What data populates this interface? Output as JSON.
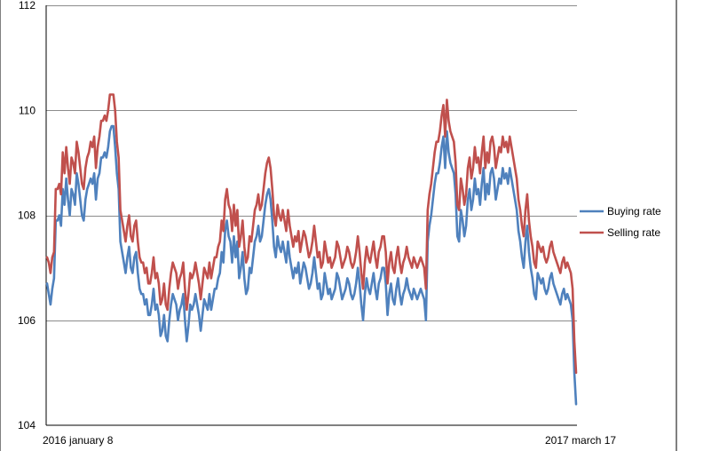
{
  "chart_data": {
    "type": "line",
    "title": "",
    "xlabel": "",
    "ylabel": "",
    "ylim": [
      104,
      112
    ],
    "y_ticks": [
      104,
      106,
      108,
      110,
      112
    ],
    "grid": true,
    "legend_position": "right",
    "x_tick_labels": [
      "2016 january 8",
      "2017 march 17"
    ],
    "series": [
      {
        "name": "Buying rate",
        "color": "#4F81BD",
        "values": [
          106.7,
          106.5,
          106.3,
          106.6,
          106.8,
          107.9,
          107.9,
          108.0,
          107.8,
          108.5,
          108.2,
          108.7,
          108.3,
          108.0,
          108.5,
          108.4,
          108.2,
          108.8,
          108.6,
          108.3,
          108.0,
          107.9,
          108.3,
          108.5,
          108.6,
          108.7,
          108.6,
          108.8,
          108.3,
          108.7,
          108.8,
          109.1,
          109.1,
          109.2,
          109.1,
          109.3,
          109.6,
          109.7,
          109.7,
          109.3,
          108.8,
          108.5,
          107.5,
          107.3,
          107.1,
          106.9,
          107.2,
          107.4,
          107.0,
          106.9,
          107.2,
          107.3,
          106.9,
          106.6,
          106.5,
          106.5,
          106.3,
          106.4,
          106.1,
          106.1,
          106.3,
          106.6,
          106.2,
          106.3,
          106.1,
          105.7,
          105.8,
          106.1,
          105.7,
          105.6,
          106.0,
          106.3,
          106.5,
          106.4,
          106.3,
          106.0,
          106.2,
          106.3,
          106.5,
          106.0,
          105.6,
          105.9,
          106.3,
          106.2,
          106.3,
          106.5,
          106.3,
          106.1,
          105.8,
          106.1,
          106.4,
          106.3,
          106.2,
          106.5,
          106.2,
          106.4,
          106.6,
          106.6,
          106.8,
          106.9,
          107.3,
          107.1,
          107.7,
          107.9,
          107.6,
          107.5,
          107.1,
          107.6,
          107.2,
          107.5,
          106.8,
          107.0,
          107.3,
          106.8,
          106.5,
          106.6,
          107.0,
          106.9,
          107.2,
          107.5,
          107.6,
          107.8,
          107.5,
          107.6,
          107.9,
          108.2,
          108.4,
          108.5,
          108.3,
          107.9,
          107.4,
          107.2,
          107.6,
          107.4,
          107.3,
          107.5,
          107.3,
          107.1,
          107.5,
          107.2,
          107.0,
          106.8,
          107.0,
          106.9,
          107.1,
          106.7,
          106.9,
          107.1,
          107.0,
          106.8,
          106.6,
          106.7,
          106.9,
          107.2,
          106.9,
          106.6,
          106.7,
          106.4,
          106.5,
          106.9,
          106.7,
          106.5,
          106.6,
          106.4,
          106.5,
          106.6,
          106.9,
          106.8,
          106.6,
          106.4,
          106.5,
          106.6,
          106.8,
          106.7,
          106.5,
          106.4,
          106.5,
          106.7,
          107.0,
          106.7,
          106.3,
          106.0,
          106.5,
          106.8,
          106.6,
          106.5,
          106.7,
          106.9,
          106.6,
          106.4,
          106.7,
          106.8,
          107.0,
          107.0,
          106.7,
          106.1,
          106.5,
          106.7,
          106.4,
          106.3,
          106.6,
          106.8,
          106.5,
          106.3,
          106.5,
          106.6,
          106.8,
          106.6,
          106.5,
          106.4,
          106.6,
          106.5,
          106.4,
          106.5,
          106.6,
          106.5,
          106.4,
          106.0,
          107.5,
          107.8,
          108.0,
          108.3,
          108.6,
          108.8,
          108.8,
          109.0,
          109.3,
          109.5,
          108.9,
          109.6,
          109.2,
          109.0,
          108.9,
          108.8,
          108.4,
          107.6,
          107.5,
          108.1,
          107.9,
          107.6,
          107.8,
          108.3,
          108.5,
          108.1,
          108.3,
          108.7,
          108.4,
          108.5,
          108.2,
          108.6,
          108.9,
          108.3,
          108.6,
          108.4,
          108.8,
          108.9,
          108.7,
          108.3,
          108.5,
          108.7,
          108.6,
          108.9,
          108.7,
          108.8,
          108.6,
          108.9,
          108.7,
          108.5,
          108.3,
          108.1,
          107.7,
          107.5,
          107.2,
          107.0,
          107.5,
          107.8,
          107.3,
          107.0,
          106.8,
          106.5,
          106.4,
          106.9,
          106.8,
          106.7,
          106.8,
          106.6,
          106.5,
          106.6,
          106.8,
          106.9,
          106.7,
          106.6,
          106.5,
          106.4,
          106.3,
          106.5,
          106.6,
          106.4,
          106.5,
          106.4,
          106.3,
          106.0,
          105.0,
          104.4
        ]
      },
      {
        "name": "Selling rate",
        "color": "#C0504D",
        "values": [
          107.2,
          107.1,
          106.9,
          107.2,
          107.3,
          108.5,
          108.5,
          108.6,
          108.4,
          109.2,
          108.8,
          109.3,
          108.9,
          108.6,
          109.1,
          109.0,
          108.8,
          109.4,
          109.2,
          108.9,
          108.6,
          108.5,
          108.9,
          109.1,
          109.2,
          109.4,
          109.3,
          109.5,
          108.9,
          109.3,
          109.5,
          109.8,
          109.8,
          109.9,
          109.8,
          110.0,
          110.3,
          110.3,
          110.3,
          110.0,
          109.4,
          109.1,
          108.1,
          107.9,
          107.7,
          107.5,
          107.8,
          108.0,
          107.6,
          107.5,
          107.8,
          107.9,
          107.5,
          107.2,
          107.1,
          107.1,
          106.9,
          107.0,
          106.7,
          106.7,
          106.9,
          107.2,
          106.8,
          106.9,
          106.7,
          106.3,
          106.4,
          106.7,
          106.3,
          106.2,
          106.6,
          106.9,
          107.1,
          107.0,
          106.9,
          106.6,
          106.8,
          106.9,
          107.1,
          106.6,
          106.2,
          106.5,
          106.9,
          106.8,
          106.9,
          107.1,
          106.9,
          106.7,
          106.4,
          106.7,
          107.0,
          106.9,
          106.8,
          107.1,
          106.8,
          107.0,
          107.2,
          107.2,
          107.4,
          107.5,
          107.9,
          107.7,
          108.3,
          108.5,
          108.2,
          108.1,
          107.7,
          108.2,
          107.8,
          108.1,
          107.4,
          107.6,
          107.9,
          107.4,
          107.1,
          107.2,
          107.6,
          107.5,
          107.8,
          108.1,
          108.2,
          108.4,
          108.1,
          108.2,
          108.5,
          108.8,
          109.0,
          109.1,
          108.9,
          108.5,
          108.0,
          107.8,
          108.2,
          108.0,
          107.9,
          108.1,
          107.9,
          107.7,
          108.1,
          107.8,
          107.6,
          107.4,
          107.6,
          107.5,
          107.7,
          107.3,
          107.5,
          107.7,
          107.6,
          107.4,
          107.2,
          107.3,
          107.5,
          107.8,
          107.5,
          107.2,
          107.3,
          107.0,
          107.1,
          107.5,
          107.3,
          107.1,
          107.2,
          107.0,
          107.1,
          107.2,
          107.5,
          107.4,
          107.2,
          107.0,
          107.1,
          107.2,
          107.4,
          107.3,
          107.1,
          107.0,
          107.1,
          107.3,
          107.6,
          107.3,
          106.9,
          106.6,
          107.1,
          107.4,
          107.2,
          107.1,
          107.3,
          107.5,
          107.2,
          107.0,
          107.3,
          107.4,
          107.6,
          107.6,
          107.3,
          106.7,
          107.1,
          107.3,
          107.0,
          106.9,
          107.2,
          107.4,
          107.1,
          106.9,
          107.1,
          107.2,
          107.4,
          107.2,
          107.1,
          107.0,
          107.2,
          107.1,
          107.0,
          107.1,
          107.2,
          107.1,
          107.0,
          106.6,
          108.1,
          108.4,
          108.6,
          108.9,
          109.2,
          109.4,
          109.4,
          109.6,
          109.9,
          110.1,
          109.5,
          110.2,
          109.8,
          109.6,
          109.5,
          109.4,
          109.0,
          108.2,
          108.1,
          108.7,
          108.5,
          108.2,
          108.4,
          108.9,
          109.1,
          108.7,
          108.9,
          109.3,
          109.0,
          109.1,
          108.8,
          109.2,
          109.5,
          108.9,
          109.2,
          109.0,
          109.4,
          109.5,
          109.3,
          108.9,
          109.1,
          109.3,
          109.2,
          109.5,
          109.3,
          109.4,
          109.2,
          109.5,
          109.3,
          109.1,
          108.9,
          108.7,
          108.3,
          108.1,
          107.8,
          107.6,
          108.1,
          108.4,
          107.9,
          107.6,
          107.4,
          107.1,
          107.0,
          107.5,
          107.4,
          107.3,
          107.4,
          107.2,
          107.1,
          107.2,
          107.4,
          107.5,
          107.3,
          107.2,
          107.1,
          107.0,
          106.9,
          107.1,
          107.2,
          107.0,
          107.1,
          107.0,
          106.9,
          106.6,
          105.6,
          105.0
        ]
      }
    ]
  }
}
